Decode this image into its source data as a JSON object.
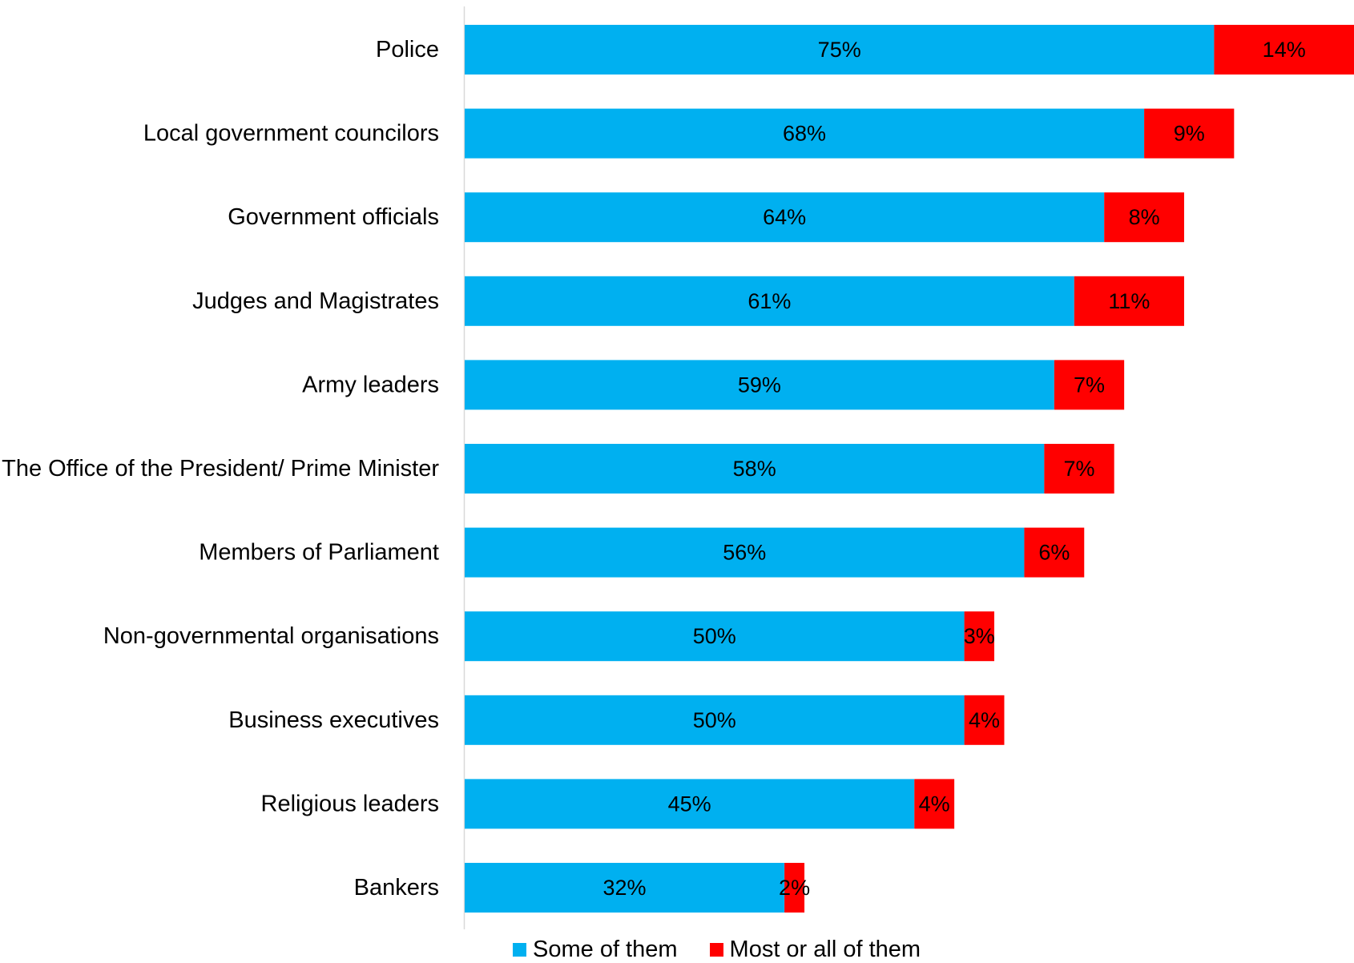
{
  "chart_data": {
    "type": "bar",
    "orientation": "horizontal",
    "stacked": true,
    "title": "",
    "xlabel": "",
    "ylabel": "",
    "xlim": [
      0,
      89
    ],
    "grid": false,
    "legend_position": "bottom",
    "categories": [
      "Police",
      "Local government councilors",
      "Government officials",
      "Judges and Magistrates",
      "Army leaders",
      "The Office of the President/ Prime Minister",
      "Members of Parliament",
      "Non-governmental organisations",
      "Business executives",
      "Religious leaders",
      "Bankers"
    ],
    "series": [
      {
        "name": "Some of them",
        "color": "#00B0F0",
        "values": [
          75,
          68,
          64,
          61,
          59,
          58,
          56,
          50,
          50,
          45,
          32
        ],
        "labels": [
          "75%",
          "68%",
          "64%",
          "61%",
          "59%",
          "58%",
          "56%",
          "50%",
          "50%",
          "45%",
          "32%"
        ]
      },
      {
        "name": "Most or all of them",
        "color": "#FF0000",
        "values": [
          14,
          9,
          8,
          11,
          7,
          7,
          6,
          3,
          4,
          4,
          2
        ],
        "labels": [
          "14%",
          "9%",
          "8%",
          "11%",
          "7%",
          "7%",
          "6%",
          "3%",
          "4%",
          "4%",
          "2%"
        ]
      }
    ]
  }
}
